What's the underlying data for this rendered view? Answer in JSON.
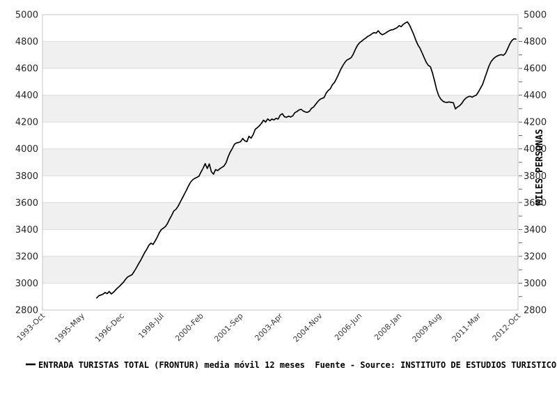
{
  "legend": {
    "marker": "black-line-segment",
    "text": "ENTRADA TURISTAS TOTAL (FRONTUR) media móvil 12 meses  Fuente - Source: INSTITUTO DE ESTUDIOS TURISTICOS: M"
  },
  "colors": {
    "line": "#000000",
    "band_fill": "#f0f0f0",
    "gridline": "#dcdcdc",
    "plot_border": "#c4c4c4",
    "tick": "#666666",
    "axis_text": "#262626",
    "background": "#ffffff"
  },
  "chart_data": {
    "type": "line",
    "title": "",
    "xlabel": "",
    "ylabel_right": "MILES PERSONAS",
    "ylim": [
      2800,
      5000
    ],
    "y_major_step": 200,
    "y_minor_step": 100,
    "grid": "horizontal-only",
    "legend_position": "bottom-left",
    "shaded_bands": [
      [
        4600,
        4800
      ],
      [
        4200,
        4400
      ],
      [
        3800,
        4000
      ],
      [
        3400,
        3600
      ],
      [
        3000,
        3200
      ]
    ],
    "x_range_months": [
      0,
      228
    ],
    "x_tick_positions_months": [
      0,
      19,
      38,
      57,
      76,
      95,
      114,
      133,
      152,
      171,
      190,
      209,
      228
    ],
    "x_tick_labels": [
      "1993-Oct",
      "1995-May",
      "1996-Dec",
      "1998-Jul",
      "2000-Feb",
      "2001-Sep",
      "2003-Apr",
      "2004-Nov",
      "2006-Jun",
      "2008-Jan",
      "2009-Aug",
      "2011-Mar",
      "2012-Oct"
    ],
    "series": [
      {
        "name": "ENTRADA TURISTAS TOTAL (FRONTUR) media móvil 12 meses",
        "start_month": 26,
        "month_step": 1,
        "values": [
          2890,
          2906,
          2912,
          2918,
          2930,
          2922,
          2938,
          2920,
          2932,
          2948,
          2964,
          2978,
          2994,
          3010,
          3032,
          3048,
          3056,
          3064,
          3088,
          3114,
          3142,
          3168,
          3198,
          3228,
          3252,
          3282,
          3298,
          3288,
          3314,
          3342,
          3376,
          3400,
          3410,
          3422,
          3446,
          3478,
          3506,
          3538,
          3550,
          3572,
          3602,
          3632,
          3662,
          3692,
          3724,
          3752,
          3770,
          3780,
          3788,
          3796,
          3828,
          3856,
          3890,
          3854,
          3888,
          3830,
          3812,
          3846,
          3838,
          3852,
          3862,
          3872,
          3896,
          3940,
          3976,
          4002,
          4034,
          4044,
          4048,
          4054,
          4078,
          4060,
          4054,
          4094,
          4080,
          4106,
          4146,
          4158,
          4172,
          4190,
          4214,
          4200,
          4224,
          4210,
          4222,
          4216,
          4228,
          4222,
          4252,
          4262,
          4240,
          4235,
          4244,
          4238,
          4246,
          4270,
          4278,
          4290,
          4295,
          4282,
          4275,
          4272,
          4280,
          4302,
          4312,
          4332,
          4352,
          4368,
          4376,
          4382,
          4415,
          4435,
          4448,
          4478,
          4495,
          4525,
          4558,
          4592,
          4620,
          4645,
          4662,
          4670,
          4680,
          4705,
          4740,
          4770,
          4790,
          4802,
          4815,
          4825,
          4838,
          4846,
          4858,
          4866,
          4862,
          4880,
          4860,
          4850,
          4858,
          4868,
          4878,
          4886,
          4888,
          4895,
          4903,
          4918,
          4910,
          4928,
          4938,
          4946,
          4922,
          4888,
          4852,
          4810,
          4775,
          4750,
          4715,
          4680,
          4645,
          4622,
          4612,
          4565,
          4505,
          4440,
          4395,
          4370,
          4355,
          4348,
          4346,
          4350,
          4346,
          4344,
          4298,
          4312,
          4322,
          4338,
          4362,
          4378,
          4388,
          4392,
          4385,
          4394,
          4400,
          4424,
          4452,
          4480,
          4525,
          4570,
          4615,
          4648,
          4668,
          4682,
          4692,
          4698,
          4702,
          4697,
          4712,
          4745,
          4780,
          4806,
          4820,
          4818
        ]
      }
    ]
  }
}
